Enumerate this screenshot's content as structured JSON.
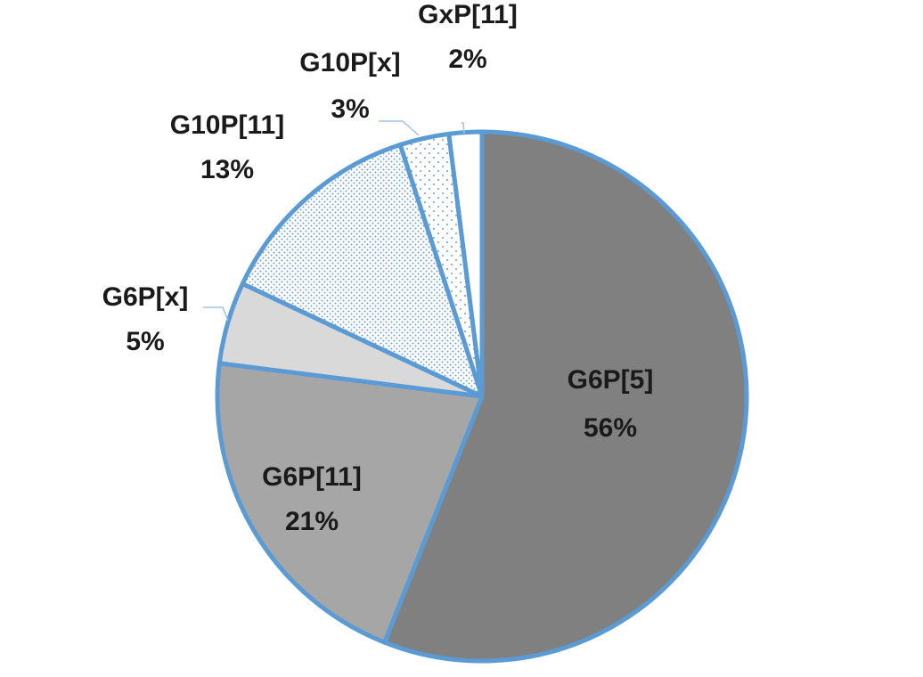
{
  "chart_data": {
    "type": "pie",
    "categories": [
      "G6P[5]",
      "G6P[11]",
      "G6P[x]",
      "G10P[11]",
      "G10P[x]",
      "GxP[11]"
    ],
    "values": [
      56,
      21,
      5,
      13,
      3,
      2
    ],
    "value_labels": [
      "56%",
      "21%",
      "5%",
      "13%",
      "3%",
      "2%"
    ],
    "colors": [
      "#808080",
      "#a6a6a6",
      "#d9d9d9",
      "#ffffff",
      "#ffffff",
      "#ffffff"
    ],
    "patterns": [
      "none",
      "none",
      "none",
      "dense-dots",
      "sparse-dots",
      "none"
    ],
    "edge_color": "#5b9bd5"
  }
}
